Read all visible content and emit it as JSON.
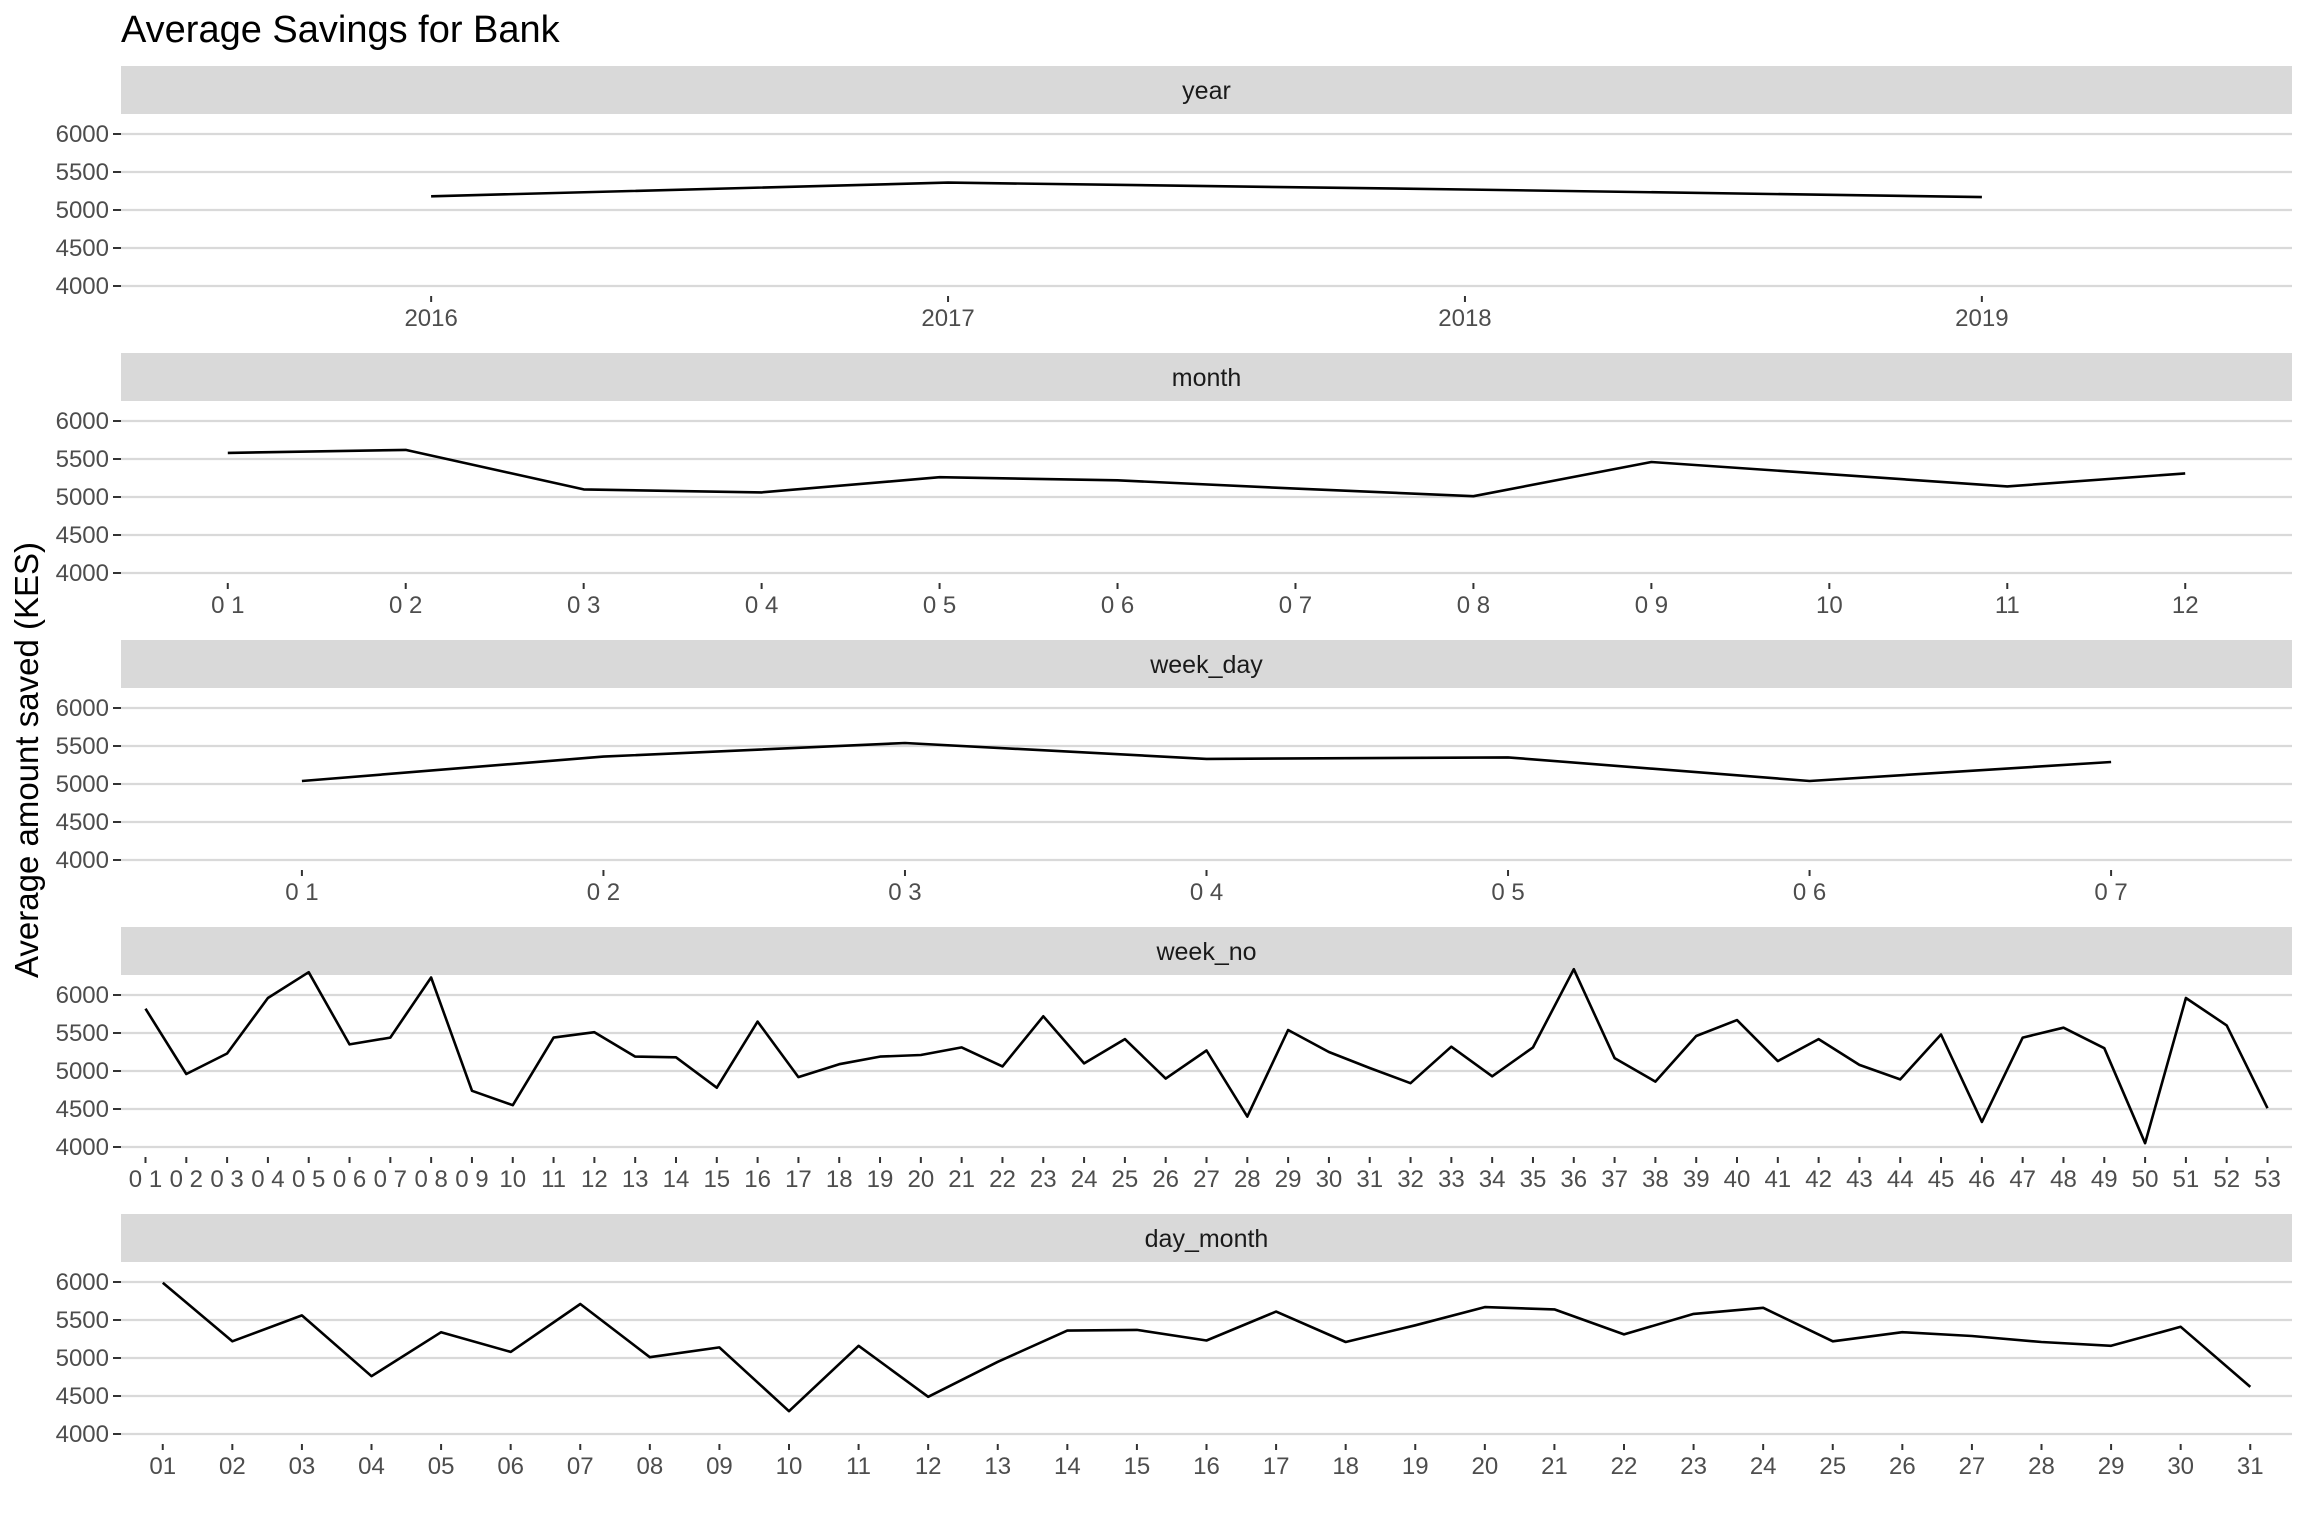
{
  "chart_data": {
    "type": "line",
    "title": "Average Savings for Bank",
    "ylabel": "Average amount saved (KES)",
    "ylim": [
      4000,
      6000
    ],
    "yticks": [
      4000,
      4500,
      5000,
      5500,
      6000
    ],
    "grid": true,
    "panels": [
      {
        "name": "year",
        "categories": [
          "2016",
          "2017",
          "2018",
          "2019"
        ],
        "values": [
          5180,
          5360,
          5270,
          5170
        ]
      },
      {
        "name": "month",
        "categories": [
          "0 1",
          "0 2",
          "0 3",
          "0 4",
          "0 5",
          "0 6",
          "0 7",
          "0 8",
          "0 9",
          "10",
          "11",
          "12"
        ],
        "values": [
          5580,
          5620,
          5100,
          5060,
          5260,
          5220,
          5110,
          5010,
          5460,
          5300,
          5140,
          5310
        ]
      },
      {
        "name": "week_day",
        "categories": [
          "0 1",
          "0 2",
          "0 3",
          "0 4",
          "0 5",
          "0 6",
          "0 7"
        ],
        "values": [
          5040,
          5360,
          5540,
          5330,
          5350,
          5040,
          5290
        ]
      },
      {
        "name": "week_no",
        "categories": [
          "0 1",
          "0 2",
          "0 3",
          "0 4",
          "0 5",
          "0 6",
          "0 7",
          "0 8",
          "0 9",
          "10",
          "11",
          "12",
          "13",
          "14",
          "15",
          "16",
          "17",
          "18",
          "19",
          "20",
          "21",
          "22",
          "23",
          "24",
          "25",
          "26",
          "27",
          "28",
          "29",
          "30",
          "31",
          "32",
          "33",
          "34",
          "35",
          "36",
          "37",
          "38",
          "39",
          "40",
          "41",
          "42",
          "43",
          "44",
          "45",
          "46",
          "47",
          "48",
          "49",
          "50",
          "51",
          "52",
          "53"
        ],
        "values": [
          5820,
          4960,
          5230,
          5960,
          6300,
          5350,
          5440,
          6230,
          4740,
          4550,
          5440,
          5510,
          5190,
          5180,
          4780,
          5650,
          4920,
          5090,
          5190,
          5210,
          5310,
          5060,
          5720,
          5100,
          5420,
          4900,
          5270,
          4400,
          5540,
          5250,
          5040,
          4840,
          5320,
          4930,
          5310,
          6340,
          5170,
          4860,
          5460,
          5670,
          5130,
          5420,
          5080,
          4890,
          5480,
          4330,
          5440,
          5570,
          5300,
          4050,
          5960,
          5600,
          4510
        ]
      },
      {
        "name": "day_month",
        "categories": [
          "01",
          "02",
          "03",
          "04",
          "05",
          "06",
          "07",
          "08",
          "09",
          "10",
          "11",
          "12",
          "13",
          "14",
          "15",
          "16",
          "17",
          "18",
          "19",
          "20",
          "21",
          "22",
          "23",
          "24",
          "25",
          "26",
          "27",
          "28",
          "29",
          "30",
          "31"
        ],
        "values": [
          5990,
          5220,
          5560,
          4760,
          5340,
          5080,
          5710,
          5010,
          5140,
          4300,
          5160,
          4490,
          4950,
          5360,
          5370,
          5230,
          5610,
          5210,
          5430,
          5670,
          5640,
          5310,
          5580,
          5660,
          5220,
          5340,
          5290,
          5210,
          5160,
          5410,
          4620
        ]
      }
    ]
  }
}
